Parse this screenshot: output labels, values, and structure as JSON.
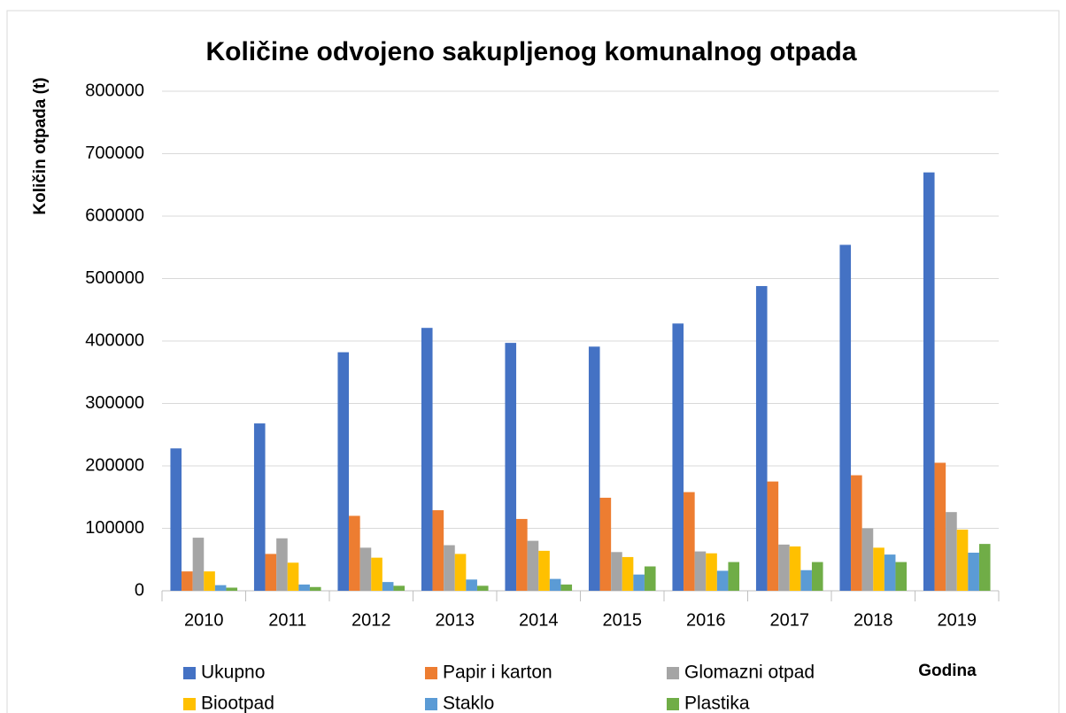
{
  "chart_data": {
    "type": "bar",
    "title": "Količine odvojeno sakupljenog komunalnog otpada",
    "y_label": "Količin otpada (t)",
    "x_label": "Godina",
    "categories": [
      "2010",
      "2011",
      "2012",
      "2013",
      "2014",
      "2015",
      "2016",
      "2017",
      "2018",
      "2019"
    ],
    "series": [
      {
        "name": "Ukupno",
        "color": "#4472c4",
        "values": [
          228000,
          268000,
          382000,
          421000,
          397000,
          391000,
          428000,
          488000,
          554000,
          670000
        ]
      },
      {
        "name": "Papir i karton",
        "color": "#ed7d31",
        "values": [
          31000,
          59000,
          120000,
          129000,
          115000,
          149000,
          158000,
          175000,
          185000,
          205000
        ]
      },
      {
        "name": "Glomazni otpad",
        "color": "#a5a5a5",
        "values": [
          85000,
          84000,
          69000,
          73000,
          80000,
          62000,
          63000,
          74000,
          100000,
          126000
        ]
      },
      {
        "name": "Biootpad",
        "color": "#ffc000",
        "values": [
          31000,
          45000,
          53000,
          59000,
          64000,
          54000,
          60000,
          71000,
          69000,
          98000
        ]
      },
      {
        "name": "Staklo",
        "color": "#5b9bd5",
        "values": [
          9000,
          10000,
          14000,
          18000,
          19000,
          26000,
          32000,
          33000,
          58000,
          61000
        ]
      },
      {
        "name": "Plastika",
        "color": "#70ad47",
        "values": [
          5000,
          6000,
          8000,
          8000,
          10000,
          39000,
          46000,
          46000,
          46000,
          75000
        ]
      }
    ],
    "ylim": [
      0,
      800000
    ],
    "yticks": [
      0,
      100000,
      200000,
      300000,
      400000,
      500000,
      600000,
      700000,
      800000
    ],
    "grid": true,
    "legend": "bottom"
  }
}
